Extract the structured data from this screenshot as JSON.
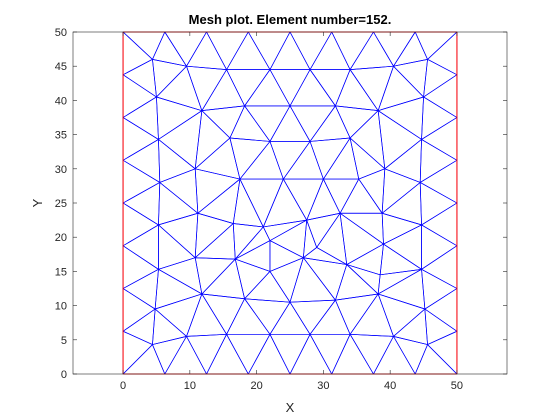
{
  "chart_data": {
    "type": "scatter",
    "title": "Mesh plot. Element number=152.",
    "xlabel": "X",
    "ylabel": "Y",
    "xlim": [
      -7.5,
      57.5
    ],
    "ylim": [
      0,
      50
    ],
    "xticks": [
      0,
      10,
      20,
      30,
      40,
      50
    ],
    "yticks": [
      0,
      5,
      10,
      15,
      20,
      25,
      30,
      35,
      40,
      45,
      50
    ],
    "grid": false,
    "legend": "none",
    "mesh_color": "#0000ff",
    "boundary_color": "#ff0000",
    "boundary": [
      [
        0,
        0
      ],
      [
        50,
        0
      ],
      [
        50,
        50
      ],
      [
        0,
        50
      ]
    ],
    "rows": [
      [
        [
          0,
          50
        ],
        [
          6.25,
          50
        ],
        [
          12.5,
          50
        ],
        [
          18.75,
          50
        ],
        [
          25,
          50
        ],
        [
          31.25,
          50
        ],
        [
          37.5,
          50
        ],
        [
          43.75,
          50
        ],
        [
          50,
          50
        ]
      ],
      [
        [
          4.4,
          46
        ],
        [
          9.5,
          45
        ],
        [
          15.5,
          44.5
        ],
        [
          22,
          44.5
        ],
        [
          28,
          44.5
        ],
        [
          34,
          44.5
        ],
        [
          40.5,
          45
        ],
        [
          45.6,
          46
        ]
      ],
      [
        [
          0,
          43.75
        ],
        [
          50,
          43.75
        ]
      ],
      [
        [
          5,
          40.5
        ],
        [
          11.8,
          38.5
        ],
        [
          18.2,
          39.2
        ],
        [
          25,
          39.2
        ],
        [
          31.8,
          39.2
        ],
        [
          38.2,
          38.5
        ],
        [
          45,
          40.5
        ]
      ],
      [
        [
          0,
          37.5
        ],
        [
          50,
          37.5
        ]
      ],
      [
        [
          5.3,
          34.3
        ],
        [
          16,
          34.5
        ],
        [
          22,
          34
        ],
        [
          28,
          34
        ],
        [
          34,
          34.5
        ],
        [
          44.7,
          34.3
        ]
      ],
      [
        [
          0,
          31.25
        ],
        [
          50,
          31.25
        ]
      ],
      [
        [
          10.8,
          30
        ],
        [
          39.2,
          30
        ]
      ],
      [
        [
          5.5,
          28
        ],
        [
          17.5,
          28.5
        ],
        [
          24,
          28.5
        ],
        [
          30,
          28.5
        ],
        [
          35.3,
          28.5
        ],
        [
          44.5,
          28
        ]
      ],
      [
        [
          0,
          25
        ],
        [
          50,
          25
        ]
      ],
      [
        [
          11.2,
          23.5
        ],
        [
          27.5,
          22.5
        ],
        [
          38.8,
          23.5
        ]
      ],
      [
        [
          16.5,
          22
        ],
        [
          21,
          21.5
        ],
        [
          32.5,
          23.5
        ]
      ],
      [
        [
          5.3,
          21.8
        ],
        [
          44.7,
          21.8
        ]
      ],
      [
        [
          22,
          19.5
        ],
        [
          29,
          18.5
        ],
        [
          39,
          19
        ]
      ],
      [
        [
          0,
          18.75
        ],
        [
          50,
          18.75
        ]
      ],
      [
        [
          16.8,
          16.8
        ],
        [
          27,
          17
        ]
      ],
      [
        [
          10.8,
          17
        ],
        [
          33.5,
          16
        ],
        [
          44.7,
          15.3
        ]
      ],
      [
        [
          5.3,
          15.3
        ],
        [
          22,
          15
        ],
        [
          38.5,
          14.5
        ]
      ],
      [
        [
          0,
          12.5
        ],
        [
          50,
          12.5
        ]
      ],
      [
        [
          11.8,
          11.7
        ],
        [
          18.2,
          11
        ],
        [
          25,
          10.5
        ],
        [
          31.8,
          10.8
        ],
        [
          38.2,
          11.7
        ]
      ],
      [
        [
          4.8,
          9.5
        ],
        [
          45.2,
          9.5
        ]
      ],
      [
        [
          0,
          6.25
        ],
        [
          50,
          6.25
        ]
      ],
      [
        [
          4.4,
          4.3
        ],
        [
          9.5,
          5.5
        ],
        [
          15.5,
          5.8
        ],
        [
          22,
          5.8
        ],
        [
          28,
          5.8
        ],
        [
          34,
          5.8
        ],
        [
          40.5,
          5.5
        ],
        [
          45.6,
          4.3
        ]
      ],
      [
        [
          0,
          0
        ],
        [
          6.25,
          0
        ],
        [
          12.5,
          0
        ],
        [
          18.75,
          0
        ],
        [
          25,
          0
        ],
        [
          31.25,
          0
        ],
        [
          37.5,
          0
        ],
        [
          43.75,
          0
        ],
        [
          50,
          0
        ]
      ]
    ]
  }
}
